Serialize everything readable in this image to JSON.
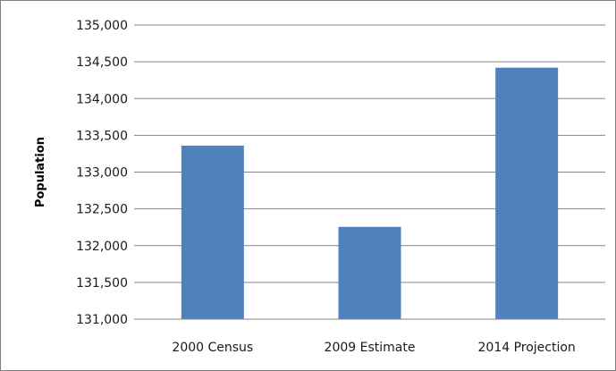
{
  "chart_data": {
    "type": "bar",
    "title": "",
    "xlabel": "",
    "ylabel": "Population",
    "categories": [
      "2000 Census",
      "2009 Estimate",
      "2014 Projection"
    ],
    "values": [
      133360,
      132255,
      134420
    ],
    "ylim": [
      131000,
      135000
    ],
    "yticks": [
      131000,
      131500,
      132000,
      132500,
      133000,
      133500,
      134000,
      134500,
      135000
    ],
    "ytick_labels": [
      "131,000",
      "131,500",
      "132,000",
      "132,500",
      "133,000",
      "133,500",
      "134,000",
      "134,500",
      "135,000"
    ],
    "grid": true,
    "legend": "none",
    "bar_color": "#4f81bd",
    "gridline_color": "#868686"
  }
}
